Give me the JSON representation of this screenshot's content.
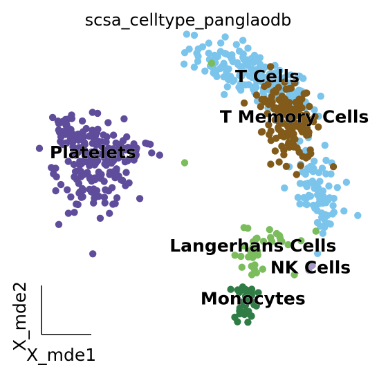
{
  "chart_data": {
    "type": "scatter",
    "title": "scsa_celltype_panglaodb",
    "xlabel": "X_mde1",
    "ylabel": "X_mde2",
    "xlim": [
      0,
      100
    ],
    "ylim": [
      0,
      100
    ],
    "grid": false,
    "legend": "on data",
    "cluster_labels": [
      {
        "text": "T Cells",
        "x": 70.5,
        "y": 88.5
      },
      {
        "text": "T Memory Cells",
        "x": 78,
        "y": 75.5
      },
      {
        "text": "Platelets",
        "x": 22,
        "y": 64
      },
      {
        "text": "Langerhans Cells",
        "x": 66.5,
        "y": 34
      },
      {
        "text": "NK Cells",
        "x": 82.5,
        "y": 27
      },
      {
        "text": "Monocytes",
        "x": 66.5,
        "y": 17
      }
    ],
    "series": [
      {
        "color": "#7bc4ec",
        "clusters": [
          {
            "cx": 65,
            "cy": 90,
            "sx": 9,
            "sy": 3.5,
            "n": 150,
            "tilt": -0.45
          },
          {
            "cx": 78,
            "cy": 82,
            "sx": 4,
            "sy": 3,
            "n": 40,
            "tilt": -0.6
          },
          {
            "cx": 84,
            "cy": 54,
            "sx": 3,
            "sy": 6.5,
            "n": 70,
            "tilt": 0.3
          },
          {
            "cx": 86,
            "cy": 42,
            "sx": 1.5,
            "sy": 3,
            "n": 14,
            "tilt": 0
          }
        ]
      },
      {
        "color": "#825a19",
        "clusters": [
          {
            "cx": 77,
            "cy": 73,
            "sx": 4,
            "sy": 6,
            "n": 140,
            "tilt": 0.2
          },
          {
            "cx": 72,
            "cy": 82,
            "sx": 3,
            "sy": 2,
            "n": 15,
            "tilt": 0
          }
        ]
      },
      {
        "color": "#5f4d9c",
        "clusters": [
          {
            "cx": 22,
            "cy": 60,
            "sx": 5,
            "sy": 7,
            "n": 170,
            "tilt": 0.1
          },
          {
            "cx": 15,
            "cy": 71,
            "sx": 2.5,
            "sy": 4,
            "n": 35,
            "tilt": 0
          },
          {
            "cx": 32,
            "cy": 65,
            "sx": 4,
            "sy": 2.5,
            "n": 40,
            "tilt": 0
          }
        ]
      },
      {
        "color": "#7bbd5c",
        "clusters": [
          {
            "cx": 66,
            "cy": 31,
            "sx": 1.5,
            "sy": 5,
            "n": 25,
            "tilt": 0.2
          },
          {
            "cx": 74,
            "cy": 37,
            "sx": 2.5,
            "sy": 1.3,
            "n": 12,
            "tilt": -0.2
          }
        ],
        "points": [
          [
            47.5,
            61
          ],
          [
            55,
            93
          ],
          [
            78,
            25
          ],
          [
            84,
            39
          ]
        ]
      },
      {
        "color": "#2f7d45",
        "clusters": [
          {
            "cx": 64.5,
            "cy": 16.5,
            "sx": 1.6,
            "sy": 3.5,
            "n": 35,
            "tilt": 0
          }
        ]
      },
      {
        "color": "#a79cc8",
        "clusters": [],
        "points": [
          [
            82,
            26.5
          ],
          [
            83,
            28
          ]
        ]
      }
    ]
  }
}
